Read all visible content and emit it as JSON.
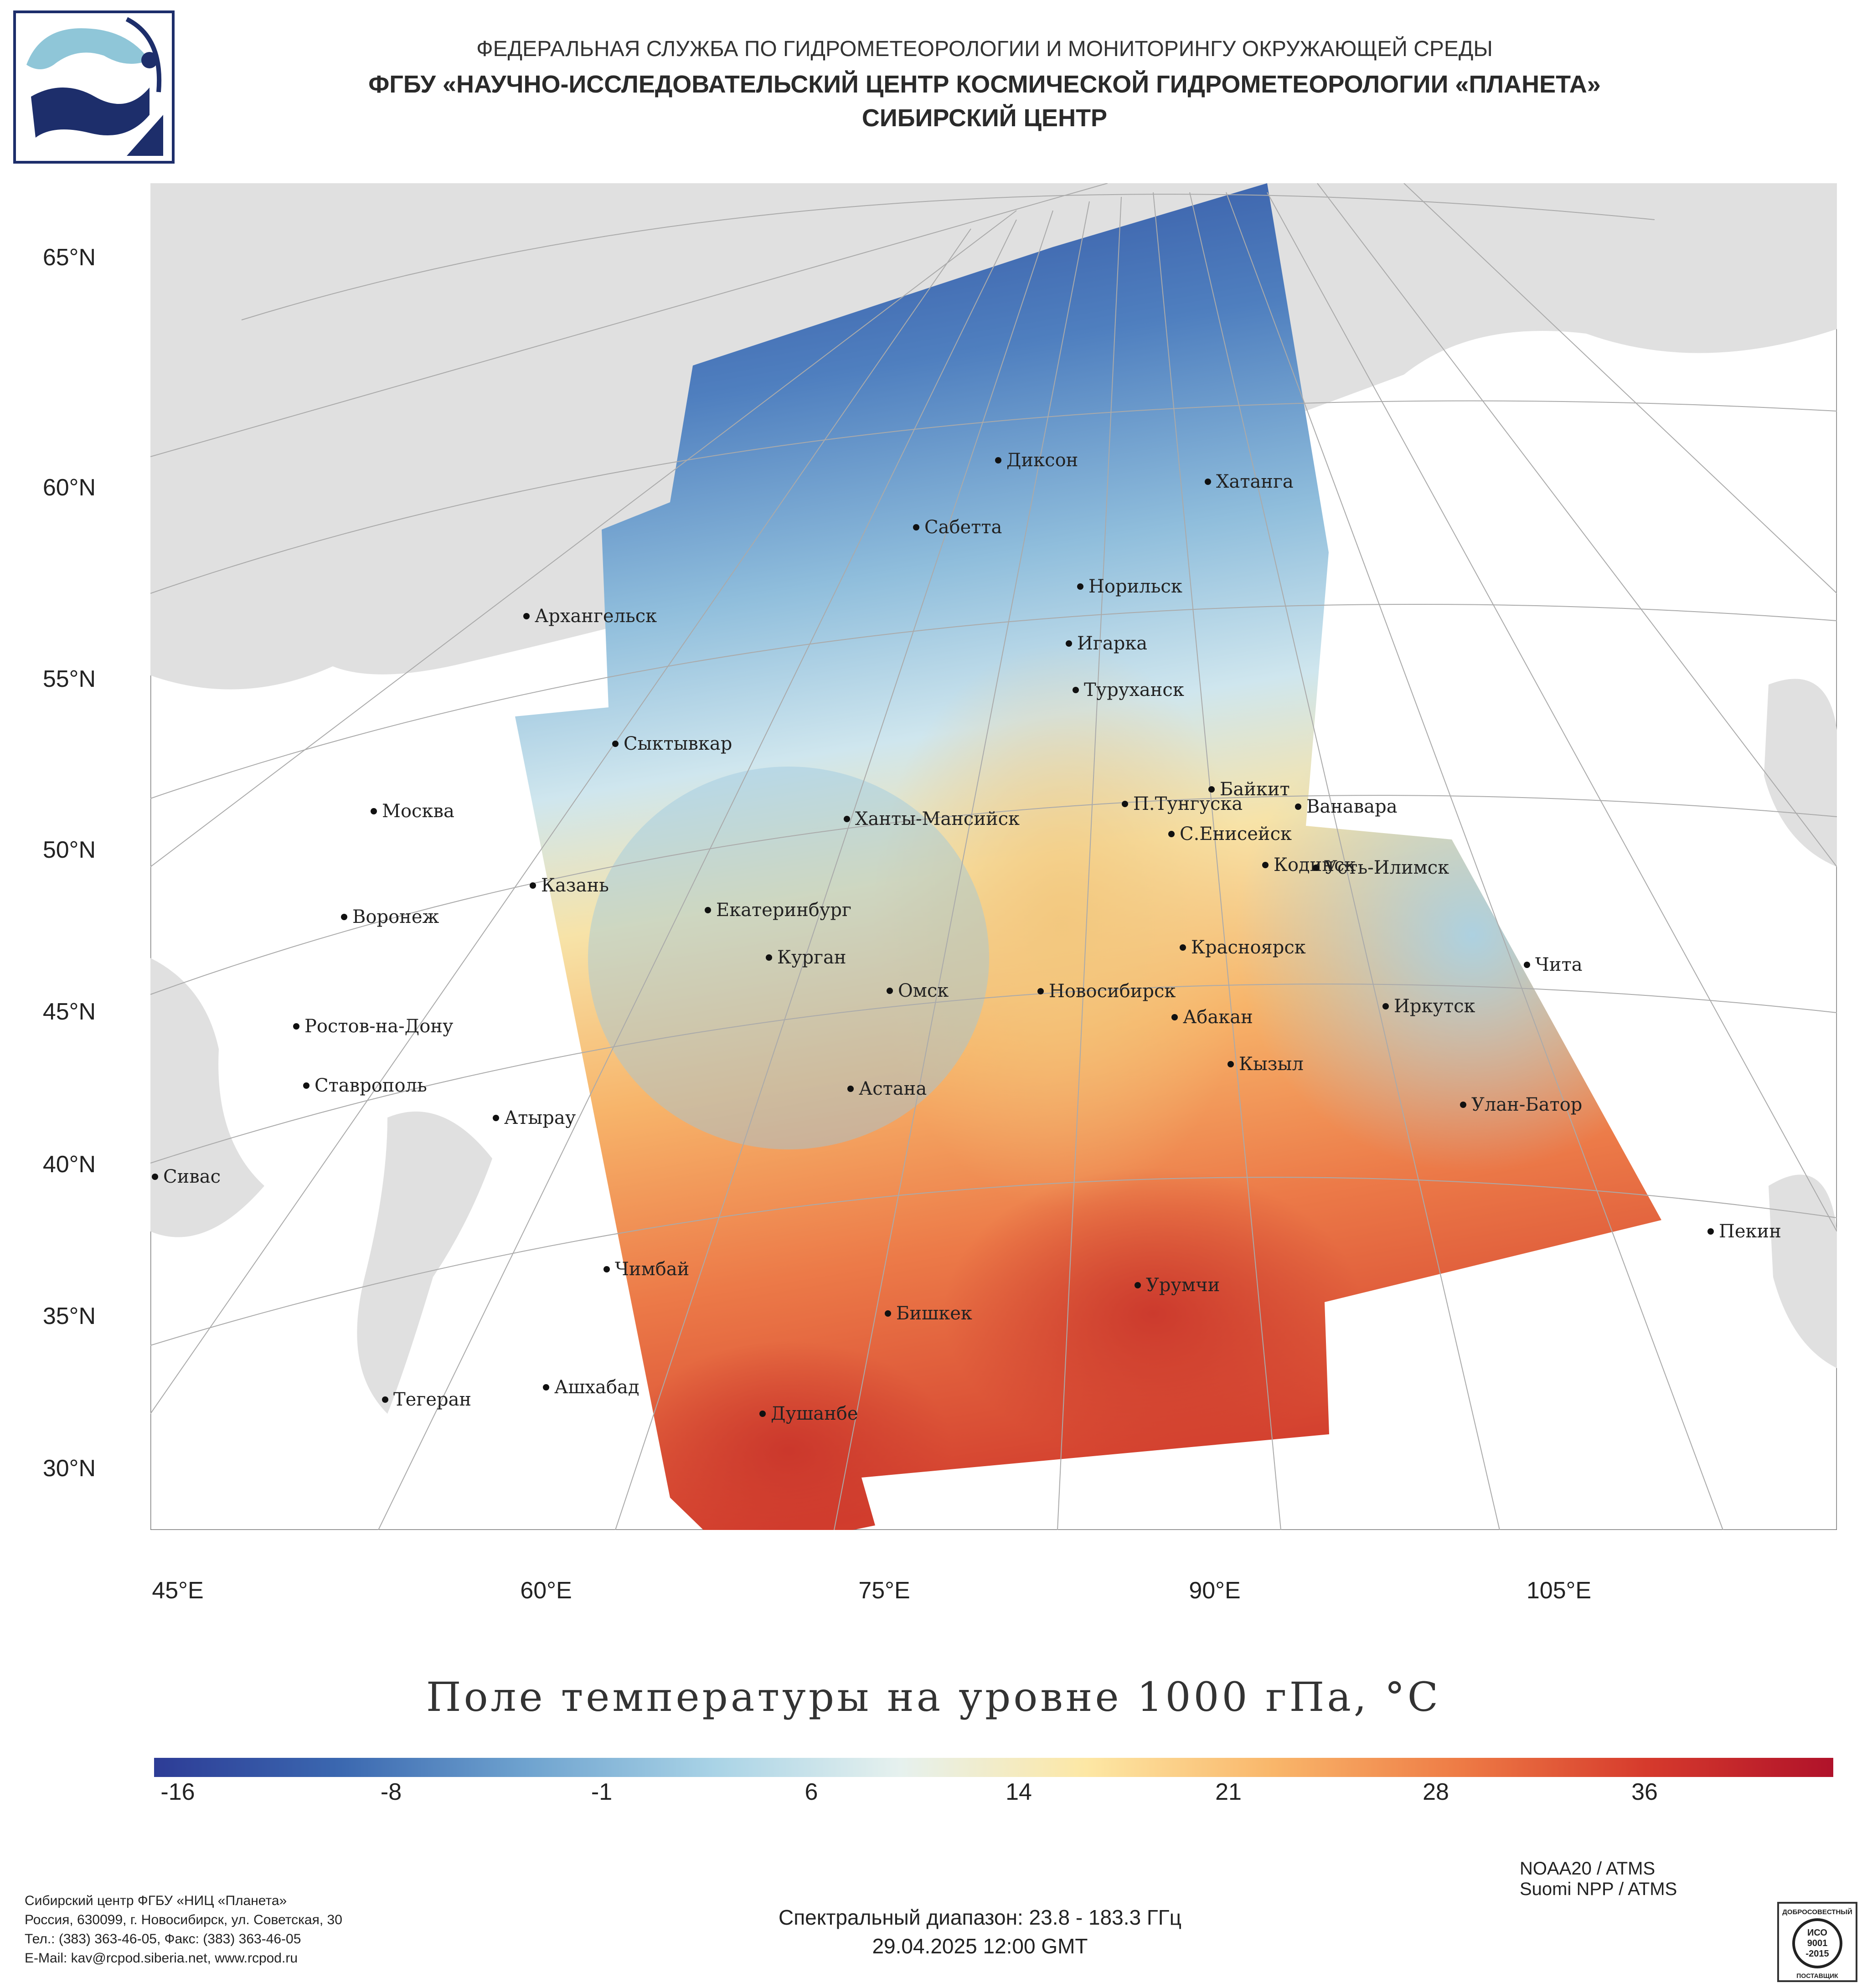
{
  "header": {
    "line1": "ФЕДЕРАЛЬНАЯ СЛУЖБА ПО ГИДРОМЕТЕОРОЛОГИИ И МОНИТОРИНГУ ОКРУЖАЮЩЕЙ СРЕДЫ",
    "line2": "ФГБУ «НАУЧНО-ИССЛЕДОВАТЕЛЬСКИЙ ЦЕНТР КОСМИЧЕСКОЙ ГИДРОМЕТЕОРОЛОГИИ «ПЛАНЕТА»",
    "line3": "СИБИРСКИЙ ЦЕНТР"
  },
  "map": {
    "lat_labels": [
      "65°N",
      "60°N",
      "55°N",
      "50°N",
      "45°N",
      "40°N",
      "35°N",
      "30°N"
    ],
    "lon_labels": [
      "45°E",
      "60°E",
      "75°E",
      "90°E",
      "105°E"
    ],
    "cities": [
      {
        "name": "Диксон"
      },
      {
        "name": "Хатанга"
      },
      {
        "name": "Сабетта"
      },
      {
        "name": "Норильск"
      },
      {
        "name": "Архангельск"
      },
      {
        "name": "Игарка"
      },
      {
        "name": "Туруханск"
      },
      {
        "name": "Сыктывкар"
      },
      {
        "name": "Байкит"
      },
      {
        "name": "Москва"
      },
      {
        "name": "П.Тунгуска"
      },
      {
        "name": "Ванавара"
      },
      {
        "name": "Ханты-Мансийск"
      },
      {
        "name": "С.Енисейск"
      },
      {
        "name": "Кодинск"
      },
      {
        "name": "Усть-Илимск"
      },
      {
        "name": "Казань"
      },
      {
        "name": "Екатеринбург"
      },
      {
        "name": "Воронеж"
      },
      {
        "name": "Красноярск"
      },
      {
        "name": "Курган"
      },
      {
        "name": "Чита"
      },
      {
        "name": "Омск"
      },
      {
        "name": "Новосибирск"
      },
      {
        "name": "Иркутск"
      },
      {
        "name": "Ростов-на-Дону"
      },
      {
        "name": "Абакан"
      },
      {
        "name": "Кызыл"
      },
      {
        "name": "Ставрополь"
      },
      {
        "name": "Астана"
      },
      {
        "name": "Улан-Батор"
      },
      {
        "name": "Атырау"
      },
      {
        "name": "Сивас"
      },
      {
        "name": "Пекин"
      },
      {
        "name": "Чимбай"
      },
      {
        "name": "Урумчи"
      },
      {
        "name": "Бишкек"
      },
      {
        "name": "Ашхабад"
      },
      {
        "name": "Тегеран"
      },
      {
        "name": "Душанбе"
      }
    ]
  },
  "product": {
    "title": "Поле температуры на уровне 1000 гПа, °С"
  },
  "colorbar": {
    "labels": [
      "-16",
      "-8",
      "-1",
      "6",
      "14",
      "21",
      "28",
      "36"
    ],
    "colors": [
      "#2d3c96",
      "#3b68b0",
      "#6fa3cf",
      "#a9d3e6",
      "#e6f1ee",
      "#fde7a4",
      "#f9b66a",
      "#ee7b45",
      "#d63a2c",
      "#b0122a"
    ]
  },
  "footer": {
    "org_lines": [
      "Сибирский центр ФГБУ «НИЦ «Планета»",
      "Россия, 630099, г. Новосибирск, ул. Советская, 30",
      "Тел.: (383) 363-46-05, Факс: (383) 363-46-05",
      "E-Mail: kav@rcpod.siberia.net, www.rcpod.ru"
    ],
    "spectral": "Спектральный диапазон: 23.8 - 183.3 ГГц",
    "datetime": "29.04.2025 12:00 GMT",
    "satellites": [
      "NOAA20 / ATMS",
      "Suomi NPP / ATMS"
    ],
    "certificate": [
      "ДОБРОСОВЕСТНЫЙ",
      "ИСО",
      "9001",
      "-2015",
      "ПОСТАВЩИК"
    ]
  }
}
